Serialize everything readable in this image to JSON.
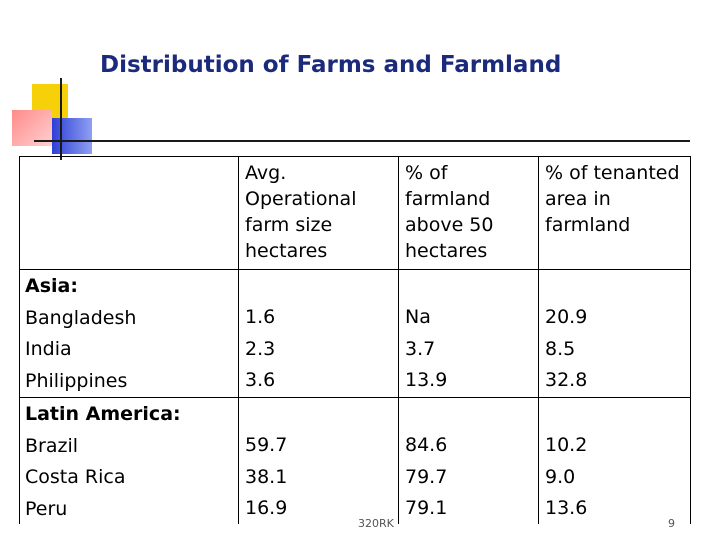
{
  "slide": {
    "title": "Distribution of Farms and Farmland",
    "footer_left": "320RK",
    "page_number": "9"
  },
  "table": {
    "headers": [
      "",
      [
        "Avg.",
        "Operational",
        "farm size",
        "hectares"
      ],
      [
        "% of",
        "farmland",
        "above 50",
        "hectares"
      ],
      [
        "% of tenanted",
        "area in",
        "farmland"
      ]
    ],
    "groups": [
      {
        "name": "Asia:",
        "countries": [
          "Bangladesh",
          "India",
          "Philippines"
        ],
        "avg_size": [
          "1.6",
          "2.3",
          "3.6"
        ],
        "pct_above_50": [
          "Na",
          "3.7",
          "13.9"
        ],
        "pct_tenanted": [
          "20.9",
          "8.5",
          "32.8"
        ]
      },
      {
        "name": "Latin America:",
        "countries": [
          "Brazil",
          "Costa Rica",
          "Peru"
        ],
        "avg_size": [
          "59.7",
          "38.1",
          "16.9"
        ],
        "pct_above_50": [
          "84.6",
          "79.7",
          "79.1"
        ],
        "pct_tenanted": [
          "10.2",
          "9.0",
          "13.6"
        ]
      }
    ]
  },
  "colors": {
    "title": "#1c2a7c",
    "logo_yellow": "#f6d10a",
    "logo_red": "#ff8a8a",
    "logo_blue": "#2f3fd6"
  }
}
